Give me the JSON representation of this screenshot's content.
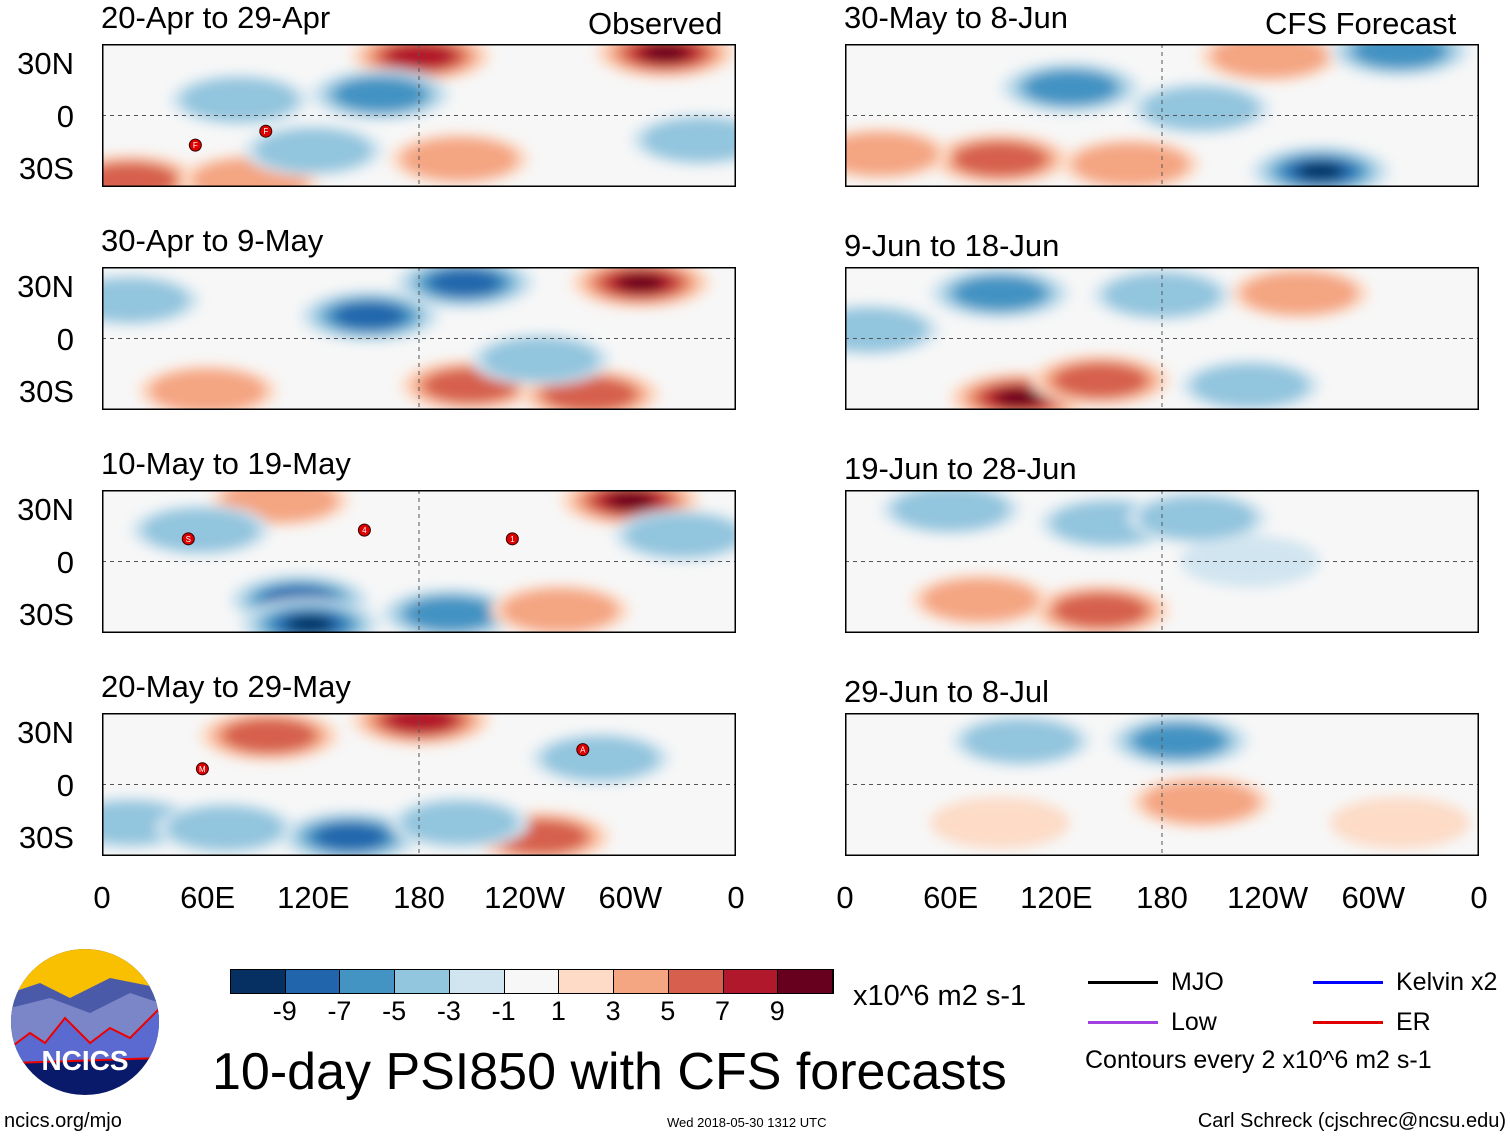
{
  "chart_data": {
    "type": "heatmap",
    "title": "10-day PSI850 with CFS forecasts",
    "units": "x10^6 m2 s-1",
    "contour_note": "Contours every 2 x10^6 m2 s-1",
    "column_labels": [
      "Observed",
      "CFS Forecast"
    ],
    "lat_ticks": [
      "30N",
      "0",
      "30S"
    ],
    "lon_ticks": [
      "0",
      "60E",
      "120E",
      "180",
      "120W",
      "60W",
      "0"
    ],
    "lon_range": [
      0,
      360
    ],
    "lat_range": [
      41,
      -41
    ],
    "colorbar": {
      "ticks": [
        "-9",
        "-7",
        "-5",
        "-3",
        "-1",
        "1",
        "3",
        "5",
        "7",
        "9"
      ],
      "colors": [
        "#053061",
        "#2166ac",
        "#4393c3",
        "#92c5de",
        "#d1e5f0",
        "#f7f7f7",
        "#fddbc7",
        "#f4a582",
        "#d6604d",
        "#b2182b",
        "#67001f"
      ]
    },
    "legend": [
      {
        "label": "MJO",
        "color": "#000000"
      },
      {
        "label": "Kelvin x2",
        "color": "#0000ff"
      },
      {
        "label": "Low",
        "color": "#a040e0"
      },
      {
        "label": "ER",
        "color": "#e00000"
      }
    ],
    "panels": [
      {
        "title": "20-Apr to 29-Apr",
        "column": "Observed",
        "features": [
          {
            "lon": 181,
            "lat": 34,
            "v": 7
          },
          {
            "lon": 320,
            "lat": 36,
            "v": 9
          },
          {
            "lon": 158,
            "lat": 12,
            "v": -5
          },
          {
            "lon": 78,
            "lat": 9,
            "v": -3
          },
          {
            "lon": 16,
            "lat": -37,
            "v": 5
          },
          {
            "lon": 84,
            "lat": -37,
            "v": 3
          },
          {
            "lon": 340,
            "lat": -14,
            "v": -3
          },
          {
            "lon": 203,
            "lat": -25,
            "v": 3
          },
          {
            "lon": 120,
            "lat": -20,
            "v": -3
          }
        ],
        "storms": [
          {
            "lon": 53,
            "lat": -17,
            "id": "F"
          },
          {
            "lon": 93,
            "lat": -9,
            "id": "F"
          }
        ]
      },
      {
        "title": "30-Apr to 9-May",
        "column": "Observed",
        "features": [
          {
            "lon": 206,
            "lat": 32,
            "v": -7
          },
          {
            "lon": 152,
            "lat": 13,
            "v": -7
          },
          {
            "lon": 306,
            "lat": 32,
            "v": 9
          },
          {
            "lon": 209,
            "lat": -27,
            "v": 5
          },
          {
            "lon": 277,
            "lat": -32,
            "v": 5
          },
          {
            "lon": 16,
            "lat": 22,
            "v": -3
          },
          {
            "lon": 249,
            "lat": -12,
            "v": -3
          },
          {
            "lon": 60,
            "lat": -30,
            "v": 3
          }
        ],
        "storms": []
      },
      {
        "title": "10-May to 19-May",
        "column": "Observed",
        "features": [
          {
            "lon": 300,
            "lat": 35,
            "v": 9
          },
          {
            "lon": 112,
            "lat": -22,
            "v": -7
          },
          {
            "lon": 118,
            "lat": -36,
            "v": -9
          },
          {
            "lon": 198,
            "lat": -30,
            "v": -5
          },
          {
            "lon": 101,
            "lat": 35,
            "v": 3
          },
          {
            "lon": 56,
            "lat": 18,
            "v": -3
          },
          {
            "lon": 260,
            "lat": -28,
            "v": 3
          },
          {
            "lon": 330,
            "lat": 15,
            "v": -3
          }
        ],
        "storms": [
          {
            "lon": 49,
            "lat": 13,
            "id": "S"
          },
          {
            "lon": 149,
            "lat": 18,
            "id": "4"
          },
          {
            "lon": 233,
            "lat": 13,
            "id": "1"
          }
        ]
      },
      {
        "title": "20-May to 29-May",
        "column": "Observed",
        "features": [
          {
            "lon": 181,
            "lat": 37,
            "v": 7
          },
          {
            "lon": 95,
            "lat": 28,
            "v": 5
          },
          {
            "lon": 141,
            "lat": -30,
            "v": -7
          },
          {
            "lon": 249,
            "lat": -30,
            "v": 5
          },
          {
            "lon": 283,
            "lat": 15,
            "v": -3
          },
          {
            "lon": 203,
            "lat": -22,
            "v": -3
          },
          {
            "lon": 16,
            "lat": -22,
            "v": -3
          },
          {
            "lon": 70,
            "lat": -25,
            "v": -3
          }
        ],
        "storms": [
          {
            "lon": 57,
            "lat": 9,
            "id": "M"
          },
          {
            "lon": 273,
            "lat": 20,
            "id": "A"
          }
        ]
      },
      {
        "title": "30-May to 8-Jun",
        "column": "CFS Forecast",
        "features": [
          {
            "lon": 88,
            "lat": -25,
            "v": 5
          },
          {
            "lon": 162,
            "lat": -28,
            "v": 3
          },
          {
            "lon": 270,
            "lat": -32,
            "v": -9
          },
          {
            "lon": 128,
            "lat": 16,
            "v": -5
          },
          {
            "lon": 241,
            "lat": 34,
            "v": 3
          },
          {
            "lon": 315,
            "lat": 37,
            "v": -5
          },
          {
            "lon": 20,
            "lat": -22,
            "v": 3
          },
          {
            "lon": 202,
            "lat": 4,
            "v": -3
          }
        ],
        "storms": []
      },
      {
        "title": "9-Jun to 18-Jun",
        "column": "CFS Forecast",
        "features": [
          {
            "lon": 88,
            "lat": 26,
            "v": -5
          },
          {
            "lon": 99,
            "lat": -34,
            "v": 9
          },
          {
            "lon": 145,
            "lat": -24,
            "v": 5
          },
          {
            "lon": 258,
            "lat": 26,
            "v": 3
          },
          {
            "lon": 14,
            "lat": 5,
            "v": -3
          },
          {
            "lon": 230,
            "lat": -27,
            "v": -3
          },
          {
            "lon": 180,
            "lat": 25,
            "v": -3
          }
        ],
        "storms": []
      },
      {
        "title": "19-Jun to 28-Jun",
        "column": "CFS Forecast",
        "features": [
          {
            "lon": 150,
            "lat": 22,
            "v": -3
          },
          {
            "lon": 145,
            "lat": -28,
            "v": 5
          },
          {
            "lon": 77,
            "lat": -22,
            "v": 3
          },
          {
            "lon": 230,
            "lat": 0,
            "v": -1
          },
          {
            "lon": 60,
            "lat": 30,
            "v": -3
          },
          {
            "lon": 200,
            "lat": 25,
            "v": -3
          }
        ],
        "storms": []
      },
      {
        "title": "29-Jun to 8-Jul",
        "column": "CFS Forecast",
        "features": [
          {
            "lon": 190,
            "lat": 25,
            "v": -5
          },
          {
            "lon": 202,
            "lat": -10,
            "v": 3
          },
          {
            "lon": 88,
            "lat": -22,
            "v": 1
          },
          {
            "lon": 315,
            "lat": -22,
            "v": 1
          },
          {
            "lon": 100,
            "lat": 25,
            "v": -3
          }
        ],
        "storms": []
      }
    ]
  },
  "footer": {
    "site": "ncics.org/mjo",
    "timestamp": "Wed 2018-05-30 1312 UTC",
    "author": "Carl Schreck (cjschrec@ncsu.edu)",
    "logo_text": "NCICS"
  }
}
